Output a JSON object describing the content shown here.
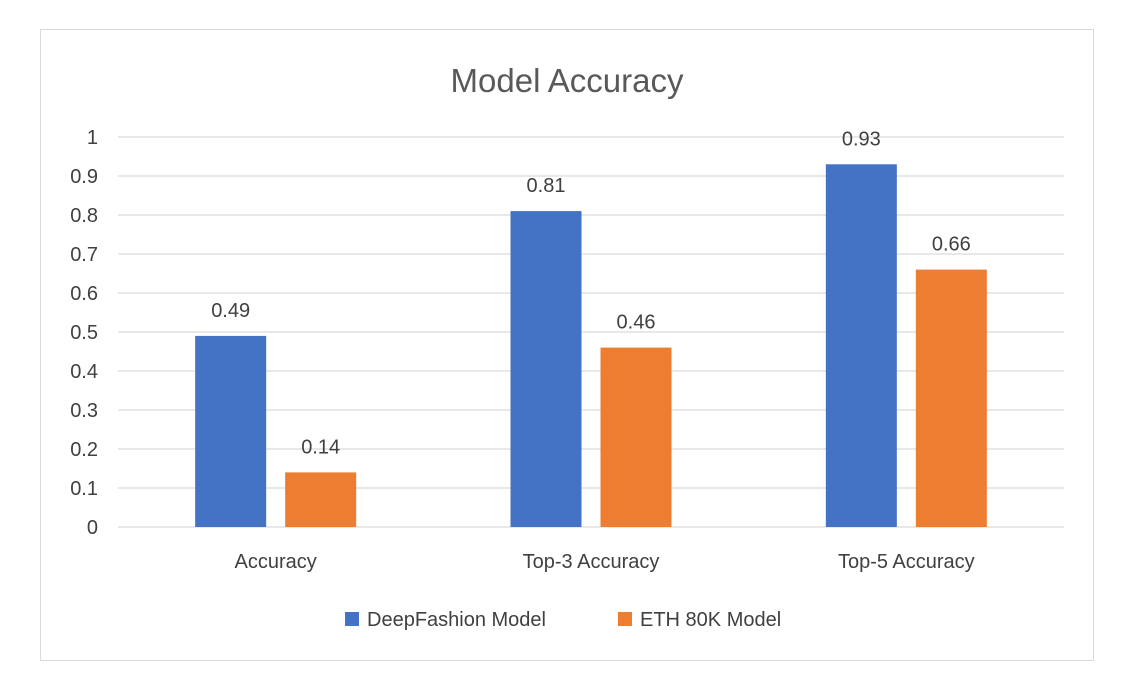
{
  "colors": {
    "series_1": "#4472C4",
    "series_2": "#ED7D31",
    "gridline": "#D9D9D9",
    "text": "#404040",
    "title": "#595959"
  },
  "chart_data": {
    "type": "bar",
    "title": "Model Accuracy",
    "xlabel": "",
    "ylabel": "",
    "categories": [
      "Accuracy",
      "Top-3 Accuracy",
      "Top-5 Accuracy"
    ],
    "series": [
      {
        "name": "DeepFashion Model",
        "values": [
          0.49,
          0.81,
          0.93
        ],
        "labels": [
          "0.49",
          "0.81",
          "0.93"
        ]
      },
      {
        "name": "ETH 80K Model",
        "values": [
          0.14,
          0.46,
          0.66
        ],
        "labels": [
          "0.14",
          "0.46",
          "0.66"
        ]
      }
    ],
    "ylim": [
      0,
      1
    ],
    "yticks": [
      0,
      0.1,
      0.2,
      0.3,
      0.4,
      0.5,
      0.6,
      0.7,
      0.8,
      0.9,
      1
    ],
    "ytick_labels": [
      "0",
      "0.1",
      "0.2",
      "0.3",
      "0.4",
      "0.5",
      "0.6",
      "0.7",
      "0.8",
      "0.9",
      "1"
    ],
    "grid": true,
    "legend_position": "bottom"
  }
}
